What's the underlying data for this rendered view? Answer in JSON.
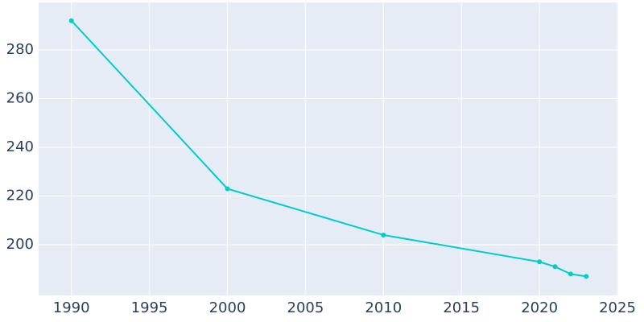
{
  "chart_data": {
    "type": "line",
    "x": [
      1990,
      2000,
      2010,
      2020,
      2021,
      2022,
      2023
    ],
    "values": [
      292,
      223,
      204,
      193,
      191,
      188,
      187
    ],
    "color": "#00cccc",
    "xlim": [
      1987.9,
      2025.05
    ],
    "xticks": [
      1990,
      1995,
      2000,
      2005,
      2010,
      2015,
      2020,
      2025
    ],
    "ylim": [
      179.2,
      299.5
    ],
    "yticks": [
      200,
      220,
      240,
      260,
      280
    ],
    "grid": true
  }
}
